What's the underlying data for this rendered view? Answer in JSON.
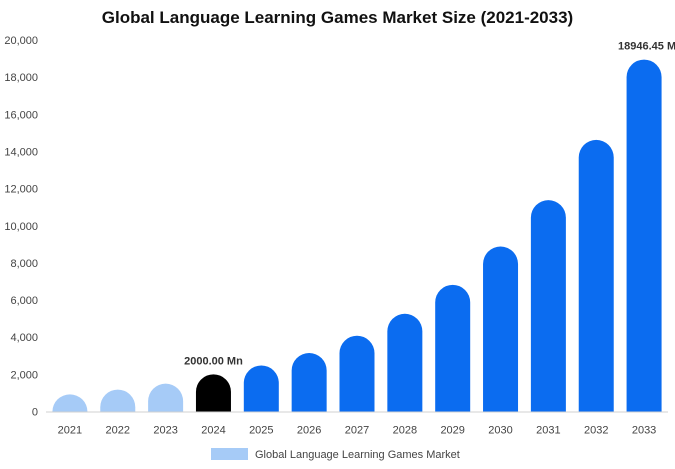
{
  "chart_data": {
    "type": "bar",
    "title": "Global Language Learning Games Market Size (2021-2033)",
    "categories": [
      "2021",
      "2022",
      "2023",
      "2024",
      "2025",
      "2026",
      "2027",
      "2028",
      "2029",
      "2030",
      "2031",
      "2032",
      "2033"
    ],
    "series": [
      {
        "name": "Global Language Learning Games Market",
        "values": [
          920,
          1180,
          1500,
          2000,
          2480,
          3150,
          4080,
          5260,
          6820,
          8880,
          11380,
          14620,
          18946.45
        ]
      }
    ],
    "ylim": [
      0,
      20000
    ],
    "yticks": [
      "0",
      "2,000",
      "4,000",
      "6,000",
      "8,000",
      "10,000",
      "12,000",
      "14,000",
      "16,000",
      "18,000",
      "20,000"
    ],
    "data_labels": [
      {
        "category": "2024",
        "text": "2000.00 Mn"
      },
      {
        "category": "2033",
        "text": "18946.45 M"
      }
    ],
    "grid": false,
    "legend_position": "bottom",
    "colors": {
      "past": "#a6cbf7",
      "current": "#000000",
      "forecast": "#0b6cf0"
    }
  }
}
